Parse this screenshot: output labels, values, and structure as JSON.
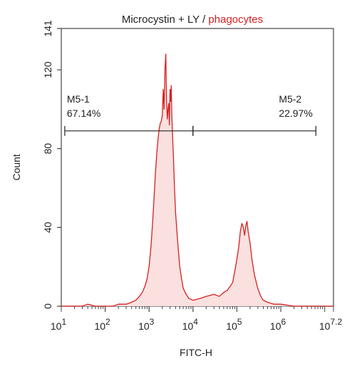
{
  "chart_data": {
    "type": "histogram",
    "title_parts": [
      {
        "text": "Microcystin + LY / ",
        "color": "#222222"
      },
      {
        "text": "phagocytes",
        "color": "#d62020"
      }
    ],
    "xlabel": "FITC-H",
    "ylabel": "Count",
    "x_scale": "log",
    "xlim": [
      10,
      15848932
    ],
    "ylim": [
      0,
      141
    ],
    "x_ticks": [
      {
        "value": 10,
        "base": "10",
        "exp": "1"
      },
      {
        "value": 100,
        "base": "10",
        "exp": "2"
      },
      {
        "value": 1000,
        "base": "10",
        "exp": "3"
      },
      {
        "value": 10000,
        "base": "10",
        "exp": "4"
      },
      {
        "value": 100000,
        "base": "10",
        "exp": "5"
      },
      {
        "value": 1000000,
        "base": "10",
        "exp": "6"
      },
      {
        "value": 15848932,
        "base": "10",
        "exp": "7.2"
      }
    ],
    "y_ticks": [
      0,
      40,
      80,
      120,
      141
    ],
    "grid": false,
    "series": [
      {
        "color": "#d62020",
        "fill": "#fbe0e0",
        "points": [
          [
            10,
            0
          ],
          [
            30,
            0
          ],
          [
            40,
            1
          ],
          [
            60,
            0
          ],
          [
            100,
            0
          ],
          [
            150,
            0
          ],
          [
            200,
            1
          ],
          [
            300,
            1
          ],
          [
            400,
            2
          ],
          [
            500,
            3
          ],
          [
            600,
            5
          ],
          [
            700,
            7
          ],
          [
            800,
            10
          ],
          [
            900,
            14
          ],
          [
            1000,
            20
          ],
          [
            1100,
            30
          ],
          [
            1200,
            42
          ],
          [
            1300,
            55
          ],
          [
            1400,
            68
          ],
          [
            1500,
            78
          ],
          [
            1600,
            85
          ],
          [
            1700,
            90
          ],
          [
            1800,
            93
          ],
          [
            1900,
            94
          ],
          [
            2000,
            97
          ],
          [
            2100,
            110
          ],
          [
            2200,
            100
          ],
          [
            2300,
            120
          ],
          [
            2400,
            128
          ],
          [
            2500,
            105
          ],
          [
            2600,
            95
          ],
          [
            2700,
            100
          ],
          [
            2800,
            103
          ],
          [
            2900,
            92
          ],
          [
            3000,
            110
          ],
          [
            3100,
            104
          ],
          [
            3200,
            112
          ],
          [
            3300,
            96
          ],
          [
            3400,
            88
          ],
          [
            3600,
            75
          ],
          [
            3800,
            60
          ],
          [
            4000,
            48
          ],
          [
            4500,
            32
          ],
          [
            5000,
            20
          ],
          [
            5500,
            14
          ],
          [
            6000,
            9
          ],
          [
            7000,
            6
          ],
          [
            8000,
            4
          ],
          [
            10000,
            3
          ],
          [
            15000,
            4
          ],
          [
            20000,
            5
          ],
          [
            30000,
            6
          ],
          [
            40000,
            5
          ],
          [
            50000,
            7
          ],
          [
            60000,
            8
          ],
          [
            70000,
            10
          ],
          [
            80000,
            12
          ],
          [
            90000,
            18
          ],
          [
            100000,
            24
          ],
          [
            110000,
            30
          ],
          [
            120000,
            38
          ],
          [
            130000,
            42
          ],
          [
            140000,
            40
          ],
          [
            150000,
            36
          ],
          [
            160000,
            41
          ],
          [
            170000,
            43
          ],
          [
            180000,
            38
          ],
          [
            200000,
            32
          ],
          [
            220000,
            24
          ],
          [
            250000,
            16
          ],
          [
            300000,
            9
          ],
          [
            350000,
            5
          ],
          [
            400000,
            3
          ],
          [
            500000,
            2
          ],
          [
            700000,
            1
          ],
          [
            1000000,
            1
          ],
          [
            2000000,
            0
          ],
          [
            15848932,
            0
          ]
        ]
      }
    ],
    "markers": [
      {
        "name": "M5-1",
        "percent": "67.14%",
        "x_start": 12,
        "x_end": 10000,
        "y": 89
      },
      {
        "name": "M5-2",
        "percent": "22.97%",
        "x_start": 10000,
        "x_end": 6300000,
        "y": 89
      }
    ]
  }
}
